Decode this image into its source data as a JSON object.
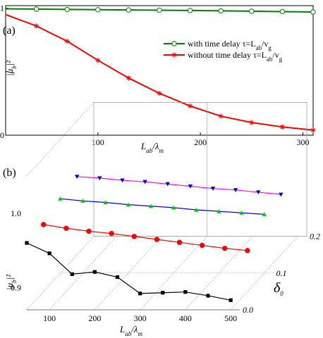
{
  "chart_data": [
    {
      "panel_label": "(a)",
      "type": "line",
      "x": [
        10,
        40,
        70,
        100,
        130,
        160,
        190,
        220,
        250,
        280,
        310
      ],
      "xlim": [
        10,
        310
      ],
      "ylim": [
        0,
        1.02
      ],
      "xticks": [
        100,
        200,
        300
      ],
      "yticks": [
        0,
        0.5,
        1
      ],
      "ytick_labels": [
        "0",
        "",
        "1"
      ],
      "xlabel": "L_ab/λ_m",
      "ylabel": "|μ_b|²",
      "grid": false,
      "legend_position": "center-right",
      "series": [
        {
          "name": "with time delay τ=L_ab/v_g",
          "color": "#008000",
          "marker": "circle",
          "values": [
            0.995,
            0.993,
            0.99,
            0.988,
            0.986,
            0.984,
            0.982,
            0.979,
            0.976,
            0.973,
            0.97
          ]
        },
        {
          "name": "without time delay τ=L_ab/v_g",
          "color": "#ff0000",
          "marker": "star",
          "values": [
            0.95,
            0.86,
            0.74,
            0.59,
            0.45,
            0.33,
            0.23,
            0.15,
            0.1,
            0.065,
            0.04
          ]
        }
      ]
    },
    {
      "panel_label": "(b)",
      "type": "line3d",
      "xlabel": "L_ab/λ_m",
      "ylabel": "|μ_b|²",
      "depth_label": "δ0",
      "xticks": [
        100,
        200,
        300,
        400,
        500
      ],
      "yticks": [
        0.9,
        1.0
      ],
      "ytick_labels": [
        "0.9",
        "1.0"
      ],
      "depth_ticks": [
        0.0,
        0.1,
        0.2
      ],
      "depth_tick_labels": [
        "0.0",
        "0.1",
        "0.2"
      ],
      "zlim": [
        0.87,
        1.05
      ],
      "grid": true,
      "x": [
        50,
        100,
        150,
        200,
        250,
        300,
        350,
        400,
        450,
        500
      ],
      "series": [
        {
          "delta": 0.0,
          "color": "#000000",
          "marker": "square",
          "values": [
            0.96,
            0.946,
            0.918,
            0.921,
            0.914,
            0.892,
            0.893,
            0.894,
            0.889,
            0.883
          ]
        },
        {
          "delta": 0.05,
          "color": "#ff0000",
          "marker": "circle",
          "values": [
            0.96,
            0.955,
            0.951,
            0.948,
            0.944,
            0.94,
            0.936,
            0.932,
            0.928,
            0.925
          ]
        },
        {
          "delta": 0.1,
          "color": "#0000ff",
          "marker": "triangle-up",
          "marker_color": "#00cc00",
          "values": [
            0.97,
            0.967,
            0.965,
            0.962,
            0.96,
            0.958,
            0.955,
            0.953,
            0.951,
            0.949
          ]
        },
        {
          "delta": 0.15,
          "color": "#ff00ff",
          "marker": "triangle-down",
          "marker_color": "#0000cc",
          "values": [
            0.975,
            0.973,
            0.97,
            0.968,
            0.965,
            0.962,
            0.959,
            0.957,
            0.954,
            0.951
          ]
        }
      ]
    }
  ]
}
